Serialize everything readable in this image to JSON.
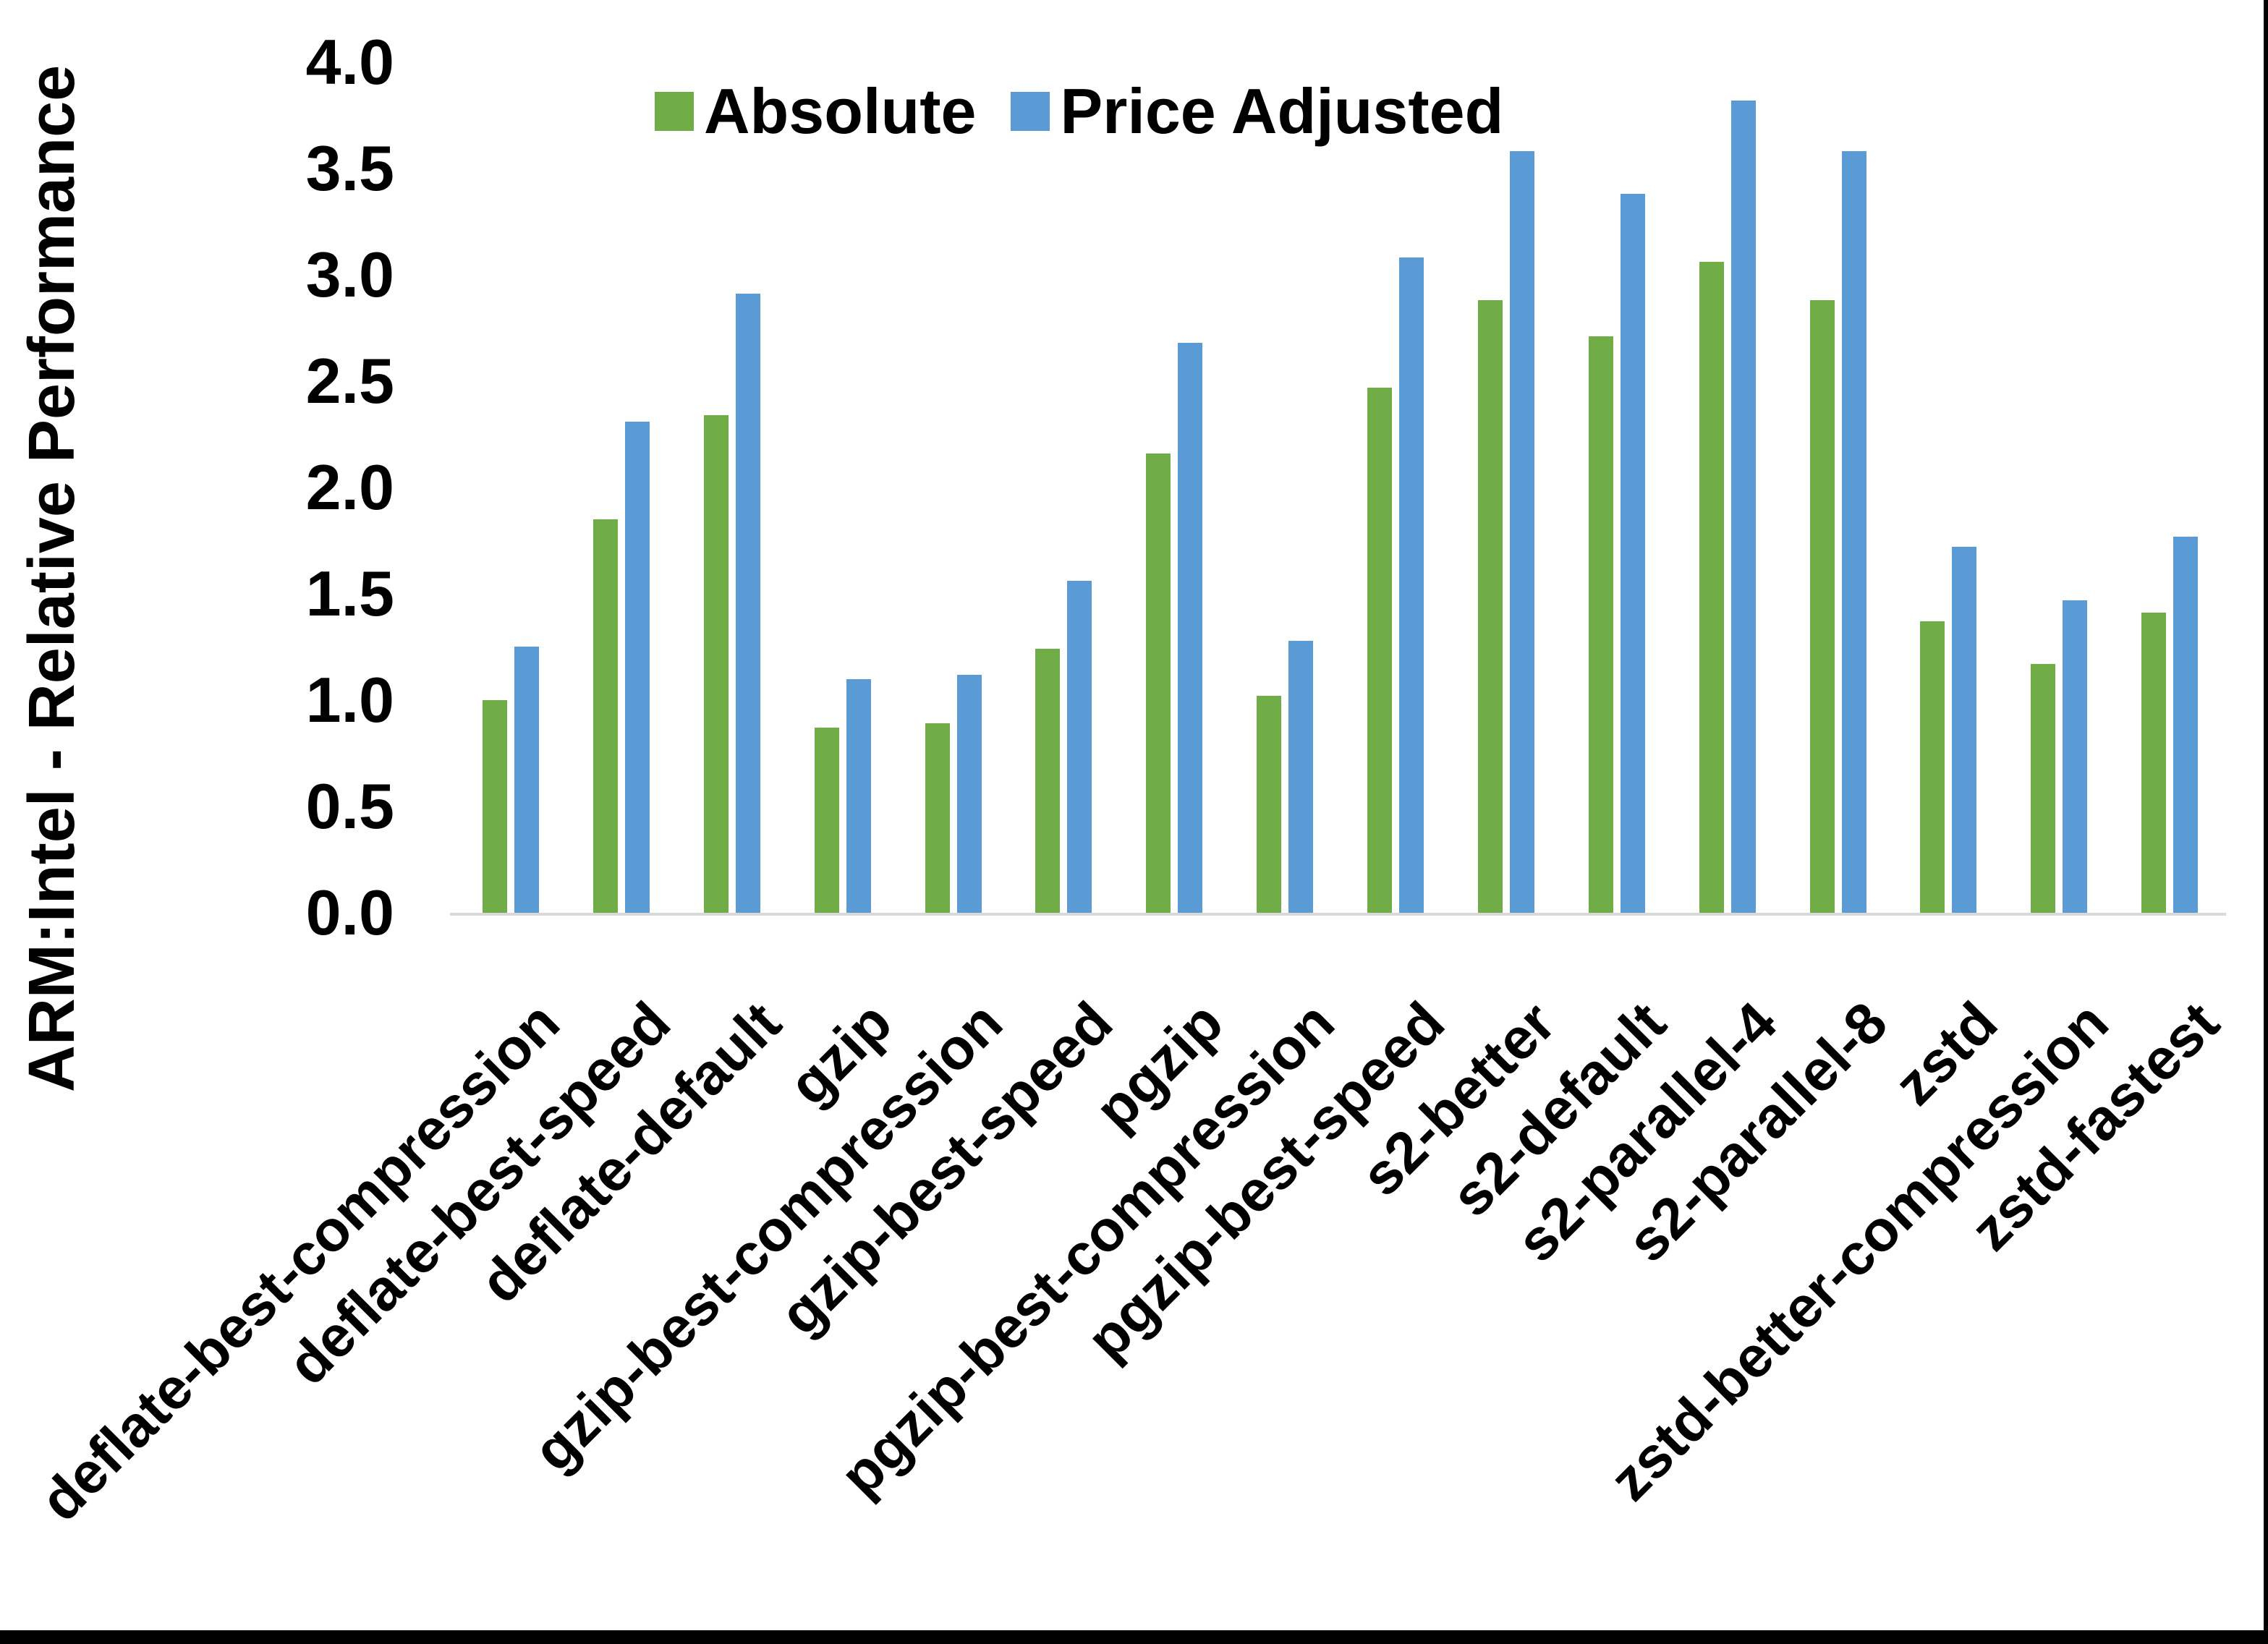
{
  "chart_data": {
    "type": "bar",
    "title": "",
    "ylabel": "ARM:Intel - Relative Performance",
    "xlabel": "",
    "ylim": [
      0.0,
      4.0
    ],
    "ytick_labels": [
      "0.0",
      "0.5",
      "1.0",
      "1.5",
      "2.0",
      "2.5",
      "3.0",
      "3.5",
      "4.0"
    ],
    "grid": false,
    "legend_position": "top-inside",
    "categories": [
      "deflate-best-compression",
      "deflate-best-speed",
      "deflate-default",
      "gzip",
      "gzip-best-compression",
      "gzip-best-speed",
      "pgzip",
      "pgzip-best-compression",
      "pgzip-best-speed",
      "s2-better",
      "s2-default",
      "s2-parallel-4",
      "s2-parallel-8",
      "zstd",
      "zstd-better-compression",
      "zstd-fastest"
    ],
    "series": [
      {
        "name": "Absolute",
        "color": "#70AD47",
        "values": [
          1.0,
          1.85,
          2.34,
          0.87,
          0.89,
          1.24,
          2.16,
          1.02,
          2.47,
          2.88,
          2.71,
          3.06,
          2.88,
          1.37,
          1.17,
          1.41
        ]
      },
      {
        "name": "Price Adjusted",
        "color": "#5B9BD5",
        "values": [
          1.25,
          2.31,
          2.91,
          1.1,
          1.12,
          1.56,
          2.68,
          1.28,
          3.08,
          3.58,
          3.38,
          3.82,
          3.58,
          1.72,
          1.47,
          1.77
        ]
      }
    ]
  },
  "styles": {
    "background": "#FFFFFF",
    "axis_line_color": "#D9D9D9",
    "text_color": "#000000",
    "frame_color": "#000000"
  }
}
